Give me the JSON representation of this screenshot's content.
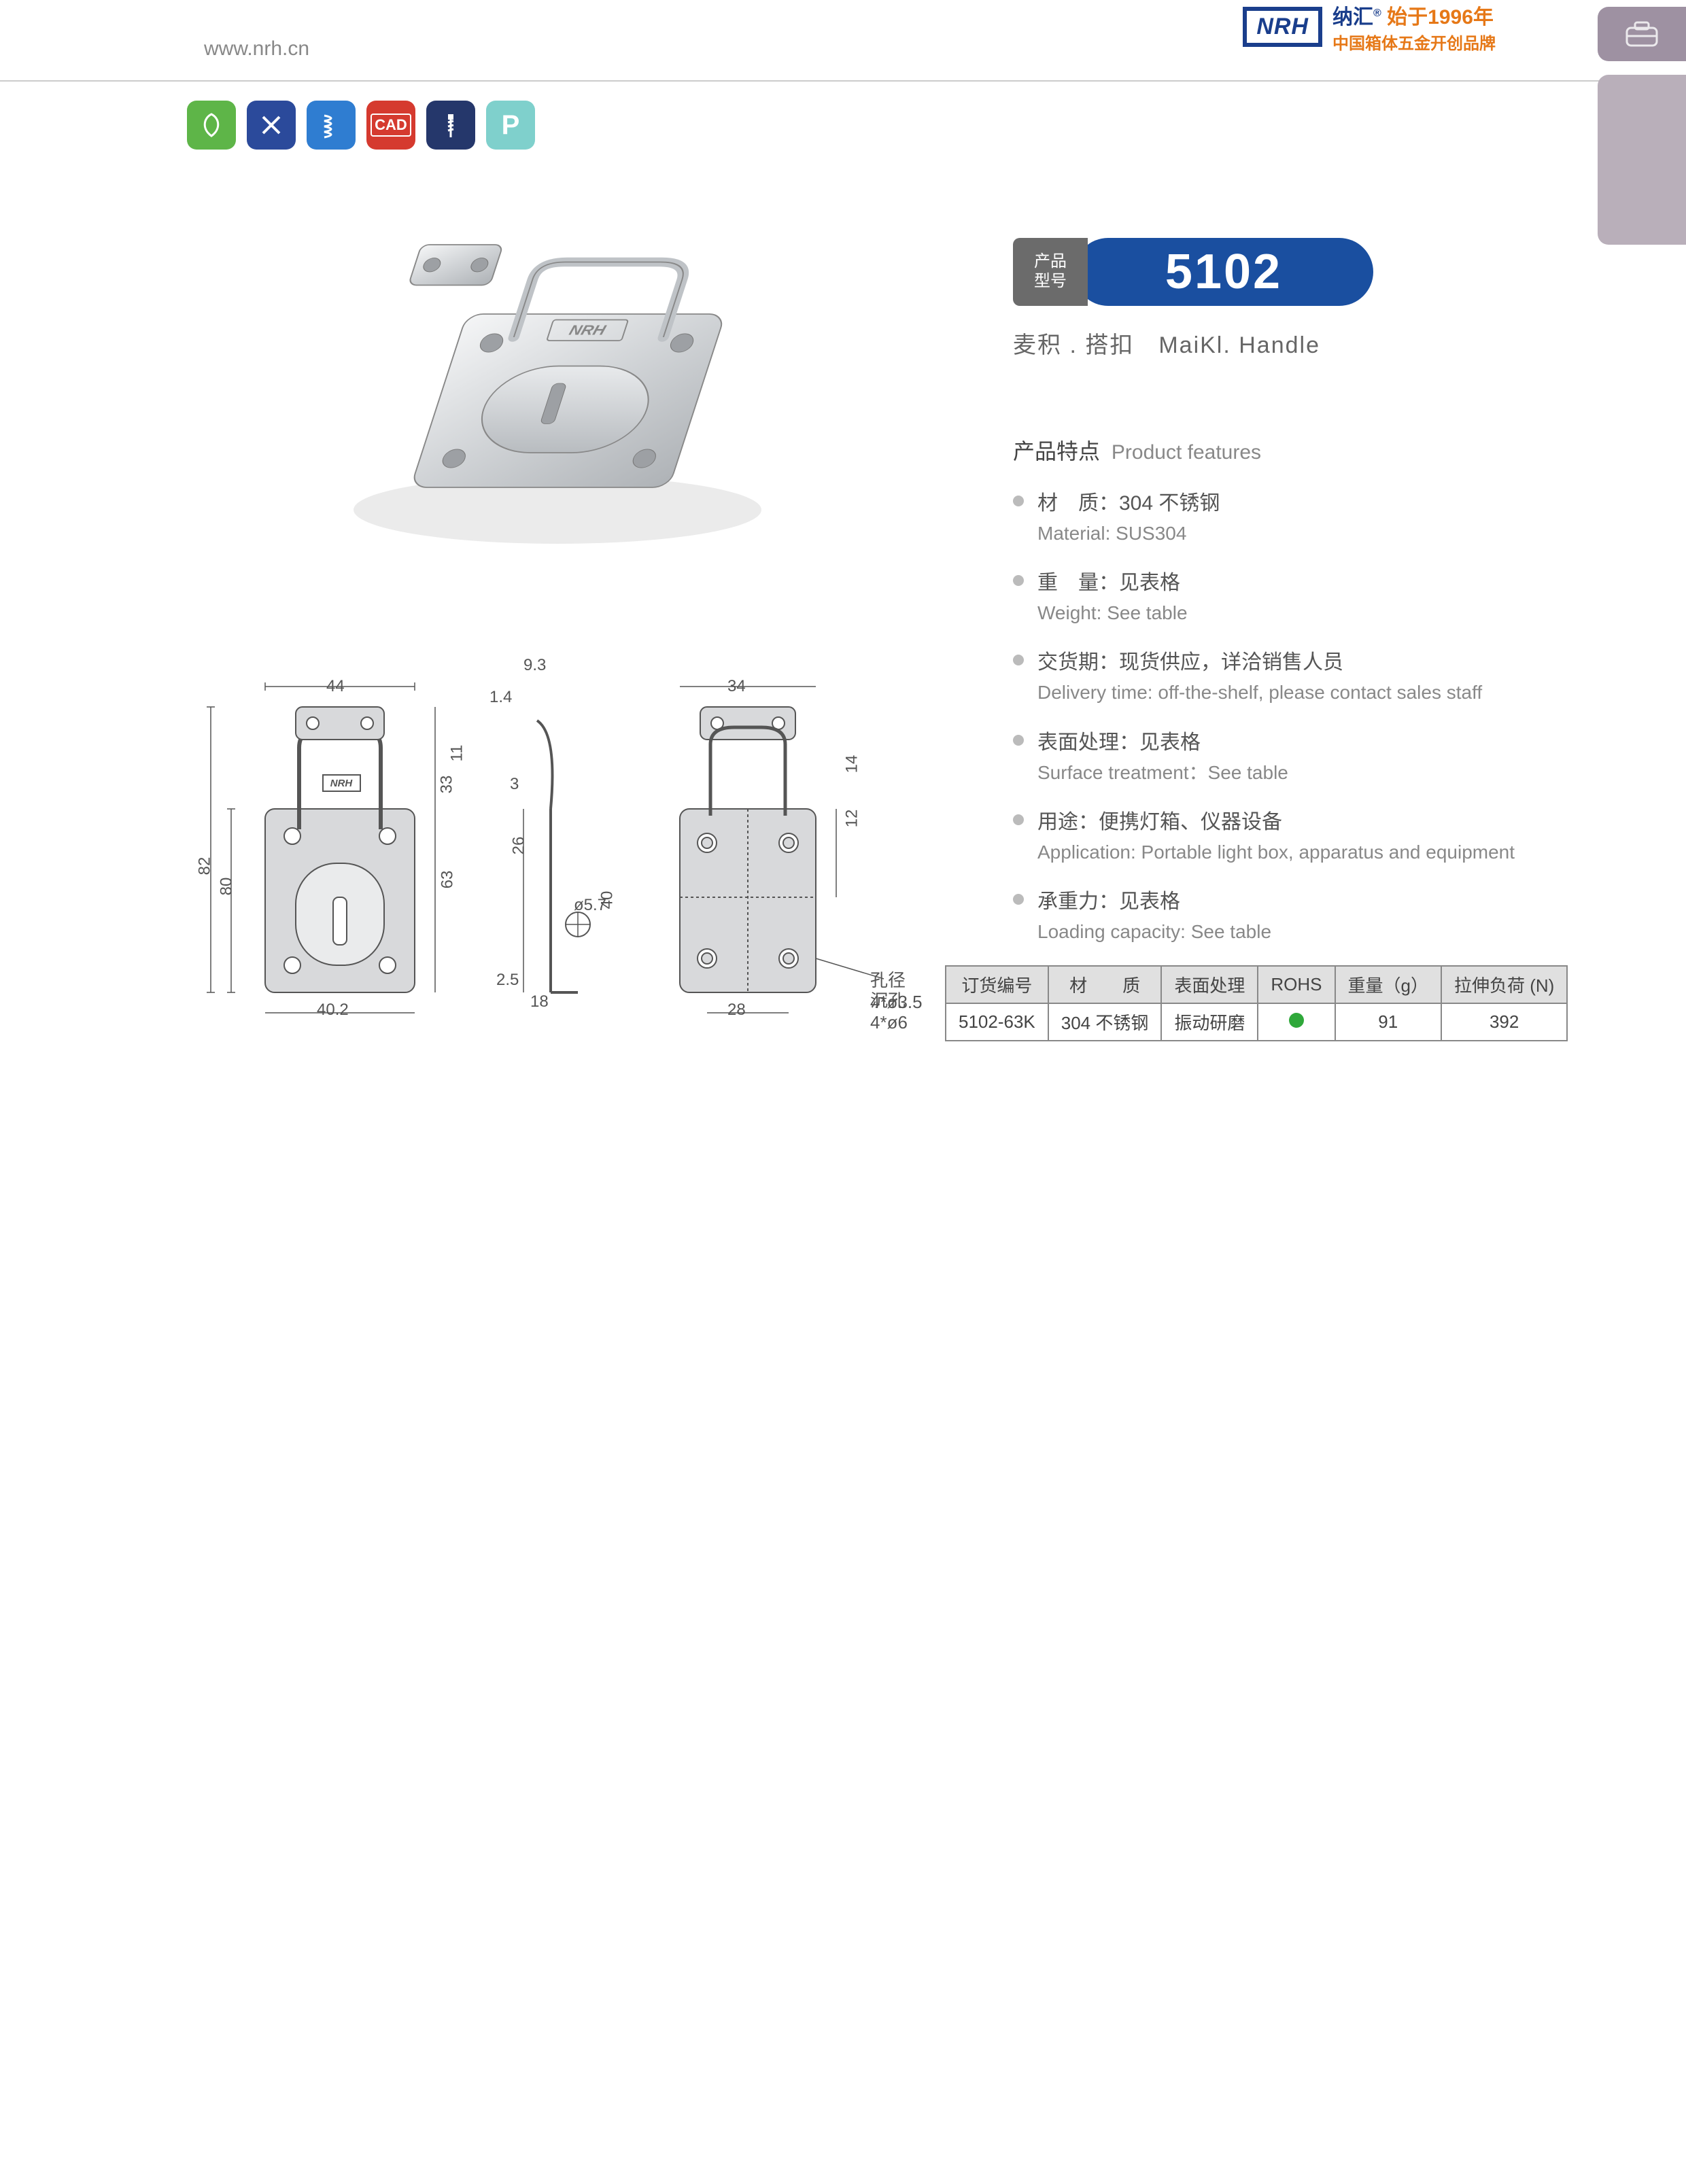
{
  "header": {
    "url": "www.nrh.cn",
    "logo_text": "NRH",
    "brand_cn": "纳汇",
    "brand_year": "始于1996年",
    "brand_tagline": "中国箱体五金开创品牌"
  },
  "icons": [
    {
      "name": "eco-icon",
      "color": "c-green"
    },
    {
      "name": "tools-icon",
      "color": "c-blue1"
    },
    {
      "name": "spring-icon",
      "color": "c-blue2"
    },
    {
      "name": "cad-icon",
      "color": "c-red",
      "label": "CAD"
    },
    {
      "name": "screw-icon",
      "color": "c-navy"
    },
    {
      "name": "p-icon",
      "color": "c-teal",
      "label": "P"
    }
  ],
  "model": {
    "tag_line1": "产品",
    "tag_line2": "型号",
    "number": "5102",
    "subtitle": "麦积 . 搭扣　MaiKl. Handle"
  },
  "features_title_cn": "产品特点",
  "features_title_en": "Product features",
  "features": [
    {
      "cn": "材　质：304 不锈钢",
      "en": "Material: SUS304"
    },
    {
      "cn": "重　量：见表格",
      "en": "Weight: See table"
    },
    {
      "cn": "交货期：现货供应，详洽销售人员",
      "en": "Delivery time: off-the-shelf, please contact sales staff"
    },
    {
      "cn": "表面处理：见表格",
      "en": "Surface treatment：See table"
    },
    {
      "cn": "用途：便携灯箱、仪器设备",
      "en": "Application: Portable light box, apparatus and equipment"
    },
    {
      "cn": "承重力：见表格",
      "en": "Loading capacity: See table"
    }
  ],
  "drawing_dims": {
    "d_93": "9.3",
    "d_14": "1.4",
    "d_44": "44",
    "d_11": "11",
    "d_33": "33",
    "d_82": "82",
    "d_80": "80",
    "d_63": "63",
    "d_402": "40.2",
    "d_3": "3",
    "d_26": "26",
    "d_40": "40",
    "d_57": "ø5.7",
    "d_25": "2.5",
    "d_18": "18",
    "d_34": "34",
    "d_14b": "14",
    "d_12": "12",
    "d_28": "28",
    "hole_note1": "孔径 4*ø3.5",
    "hole_note2": "沉孔 4*ø6"
  },
  "table": {
    "columns": [
      "订货编号",
      "材　　质",
      "表面处理",
      "ROHS",
      "重量（g）",
      "拉伸负荷 (N)"
    ],
    "rows": [
      {
        "code": "5102-63K",
        "material": "304 不锈钢",
        "surface": "振动研磨",
        "rohs": true,
        "weight": "91",
        "load": "392"
      }
    ]
  },
  "colors": {
    "brand_blue": "#1a3e8c",
    "brand_orange": "#e67817",
    "model_blue": "#1a4fa0",
    "gray_tag": "#6b6b6b",
    "rohs_green": "#2fa83a"
  }
}
